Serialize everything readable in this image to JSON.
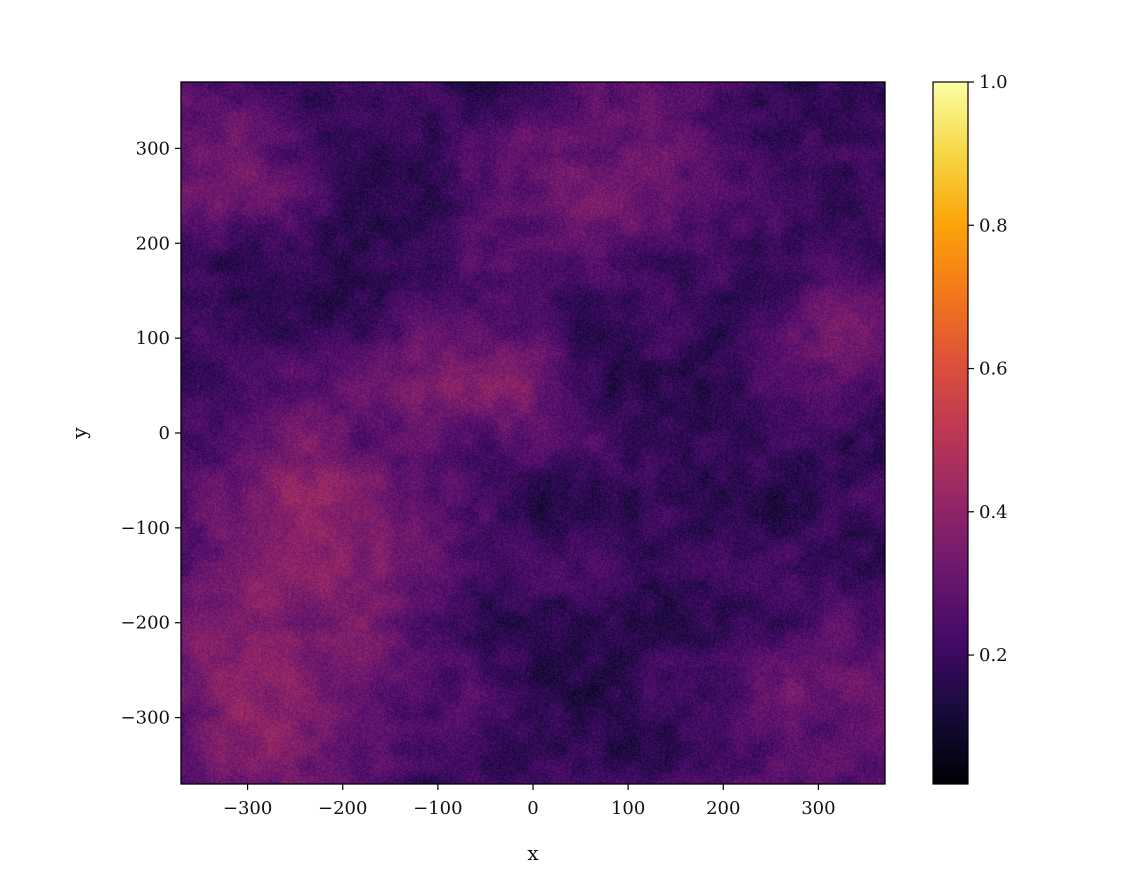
{
  "chart_data": {
    "type": "heatmap",
    "title": "",
    "xlabel": "x",
    "ylabel": "y",
    "xlim": [
      -370,
      370
    ],
    "ylim": [
      -370,
      370
    ],
    "xticks": [
      -300,
      -200,
      -100,
      0,
      100,
      200,
      300
    ],
    "yticks": [
      -300,
      -200,
      -100,
      0,
      100,
      200,
      300
    ],
    "xtick_labels": [
      "−300",
      "−200",
      "−100",
      "0",
      "100",
      "200",
      "300"
    ],
    "ytick_labels": [
      "−300",
      "−200",
      "−100",
      "0",
      "100",
      "200",
      "300"
    ],
    "colormap": "inferno",
    "colorbar": {
      "range": [
        0.02,
        1.0
      ],
      "ticks": [
        0.2,
        0.4,
        0.6,
        0.8,
        1.0
      ],
      "tick_labels": [
        "0.2",
        "0.4",
        "0.6",
        "0.8",
        "1.0"
      ]
    },
    "background_level": 0.18,
    "bright_regions": [
      {
        "x": 75,
        "y": 280,
        "radius": 80,
        "level": 0.32
      },
      {
        "x": -45,
        "y": 60,
        "radius": 55,
        "level": 0.36
      },
      {
        "x": -230,
        "y": -80,
        "radius": 110,
        "level": 0.36
      },
      {
        "x": -300,
        "y": -300,
        "radius": 110,
        "level": 0.36
      },
      {
        "x": -310,
        "y": 300,
        "radius": 70,
        "level": 0.32
      },
      {
        "x": 320,
        "y": -310,
        "radius": 100,
        "level": 0.32
      },
      {
        "x": 330,
        "y": 110,
        "radius": 70,
        "level": 0.3
      }
    ],
    "grid": false,
    "legend": "none"
  }
}
